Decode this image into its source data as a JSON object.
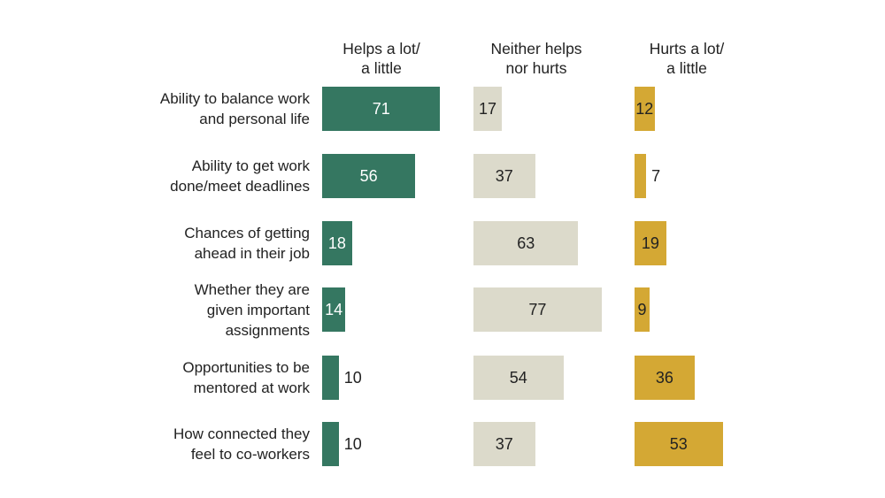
{
  "chart_data": {
    "type": "bar",
    "orientation": "horizontal",
    "layout": "small-multiples",
    "categories": [
      "Ability to balance work\nand personal life",
      "Ability to get work\ndone/meet deadlines",
      "Chances of getting\nahead in their job",
      "Whether they are\ngiven important\nassignments",
      "Opportunities to be\nmentored at work",
      "How connected they\nfeel to co-workers"
    ],
    "series": [
      {
        "name": "Helps a lot/\na little",
        "color": "#357761",
        "values": [
          71,
          56,
          18,
          14,
          10,
          10
        ]
      },
      {
        "name": "Neither helps\nnor hurts",
        "color": "#dcdacb",
        "values": [
          17,
          37,
          63,
          77,
          54,
          37
        ]
      },
      {
        "name": "Hurts a lot/\na little",
        "color": "#d4a834",
        "values": [
          12,
          7,
          19,
          9,
          36,
          53
        ]
      }
    ],
    "data_labels": true,
    "grid": false
  }
}
